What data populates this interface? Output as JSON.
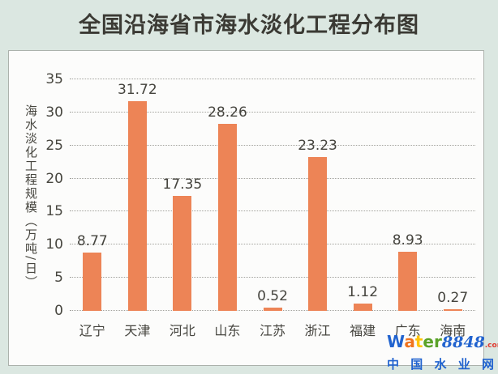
{
  "page": {
    "title": "全国沿海省市海水淡化工程分布图",
    "background_color": "#DBE7E1"
  },
  "chart_data": {
    "type": "bar",
    "title": "全国沿海省市海水淡化工程分布图",
    "categories": [
      "辽宁",
      "天津",
      "河北",
      "山东",
      "江苏",
      "浙江",
      "福建",
      "广东",
      "海南"
    ],
    "values": [
      8.77,
      31.72,
      17.35,
      28.26,
      0.52,
      23.23,
      1.12,
      8.93,
      0.27
    ],
    "value_labels": [
      "8.77",
      "31.72",
      "17.35",
      "28.26",
      "0.52",
      "23.23",
      "1.12",
      "8.93",
      "0.27"
    ],
    "xlabel": "",
    "ylabel": "海水淡化工程规模（万吨/日）",
    "ylim": [
      0,
      35
    ],
    "yticks": [
      0,
      5,
      10,
      15,
      20,
      25,
      30,
      35
    ],
    "grid": "horizontal-dotted",
    "legend_position": "none",
    "bar_color": "#ED8456",
    "text_color": "#45443E"
  },
  "watermark": {
    "brand_letters": [
      {
        "char": "W",
        "color": "#2163CF"
      },
      {
        "char": "a",
        "color": "#F0741E"
      },
      {
        "char": "t",
        "color": "#FFC50A"
      },
      {
        "char": "e",
        "color": "#5AA228"
      },
      {
        "char": "r",
        "color": "#5AA228"
      }
    ],
    "brand_number": "8848",
    "brand_tld": ".com",
    "site_name": "中国水业网",
    "site_name_color": "#2163CF"
  }
}
